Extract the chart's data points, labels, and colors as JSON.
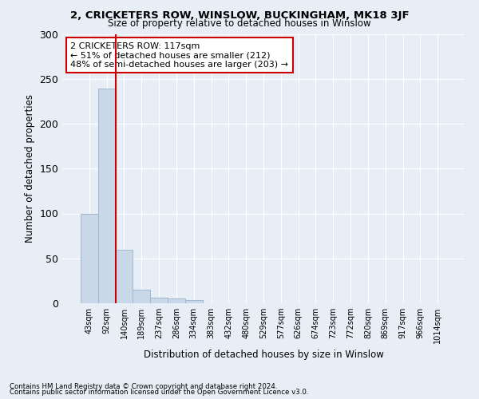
{
  "title": "2, CRICKETERS ROW, WINSLOW, BUCKINGHAM, MK18 3JF",
  "subtitle": "Size of property relative to detached houses in Winslow",
  "xlabel": "Distribution of detached houses by size in Winslow",
  "ylabel": "Number of detached properties",
  "bar_labels": [
    "43sqm",
    "92sqm",
    "140sqm",
    "189sqm",
    "237sqm",
    "286sqm",
    "334sqm",
    "383sqm",
    "432sqm",
    "480sqm",
    "529sqm",
    "577sqm",
    "626sqm",
    "674sqm",
    "723sqm",
    "772sqm",
    "820sqm",
    "869sqm",
    "917sqm",
    "966sqm",
    "1014sqm"
  ],
  "bar_values": [
    100,
    239,
    60,
    15,
    6,
    5,
    4,
    0,
    0,
    0,
    0,
    0,
    0,
    0,
    0,
    0,
    0,
    0,
    0,
    0,
    0
  ],
  "bar_color": "#c8d8e8",
  "bar_edgecolor": "#a0b8cc",
  "vline_x": 1.5,
  "vline_color": "#cc0000",
  "ylim": [
    0,
    300
  ],
  "yticks": [
    0,
    50,
    100,
    150,
    200,
    250,
    300
  ],
  "annotation_text": "2 CRICKETERS ROW: 117sqm\n← 51% of detached houses are smaller (212)\n48% of semi-detached houses are larger (203) →",
  "annotation_box_color": "#ffffff",
  "annotation_box_edgecolor": "#cc0000",
  "footer1": "Contains HM Land Registry data © Crown copyright and database right 2024.",
  "footer2": "Contains public sector information licensed under the Open Government Licence v3.0.",
  "background_color": "#e8eef6",
  "plot_bg_color": "#e8eef6"
}
